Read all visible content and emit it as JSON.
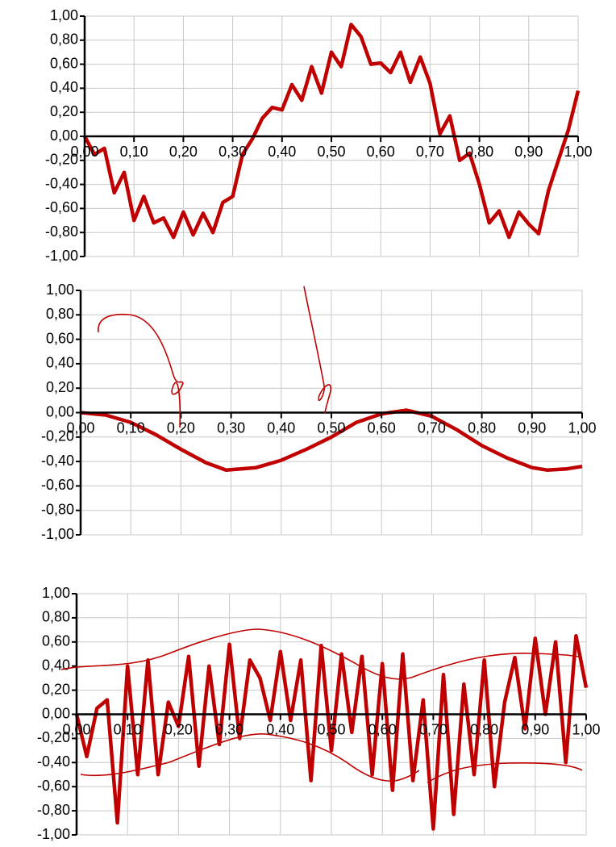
{
  "chart_data": [
    {
      "type": "line",
      "color": "#c00000",
      "grid": true,
      "xlim": [
        0,
        1
      ],
      "ylim": [
        -1,
        1
      ],
      "xticks": [
        {
          "value": 0,
          "label": "0,00"
        },
        {
          "value": 0.1,
          "label": "0,10"
        },
        {
          "value": 0.2,
          "label": "0,20"
        },
        {
          "value": 0.3,
          "label": "0,30"
        },
        {
          "value": 0.4,
          "label": "0,40"
        },
        {
          "value": 0.5,
          "label": "0,50"
        },
        {
          "value": 0.6,
          "label": "0,60"
        },
        {
          "value": 0.7,
          "label": "0,70"
        },
        {
          "value": 0.8,
          "label": "0,80"
        },
        {
          "value": 0.9,
          "label": "0,90"
        },
        {
          "value": 1,
          "label": "1,00"
        }
      ],
      "yticks": [
        {
          "value": -1,
          "label": "-1,00"
        },
        {
          "value": -0.8,
          "label": "-0,80"
        },
        {
          "value": -0.6,
          "label": "-0,60"
        },
        {
          "value": -0.4,
          "label": "-0,40"
        },
        {
          "value": -0.2,
          "label": "-0,20"
        },
        {
          "value": 0,
          "label": "0,00"
        },
        {
          "value": 0.2,
          "label": "0,20"
        },
        {
          "value": 0.4,
          "label": "0,40"
        },
        {
          "value": 0.6,
          "label": "0,60"
        },
        {
          "value": 0.8,
          "label": "0,80"
        },
        {
          "value": 1,
          "label": "1,00"
        }
      ],
      "x": [
        0,
        0.02,
        0.04,
        0.06,
        0.08,
        0.1,
        0.12,
        0.14,
        0.16,
        0.18,
        0.2,
        0.22,
        0.24,
        0.26,
        0.28,
        0.3,
        0.32,
        0.34,
        0.36,
        0.38,
        0.4,
        0.42,
        0.44,
        0.46,
        0.48,
        0.5,
        0.52,
        0.54,
        0.56,
        0.58,
        0.6,
        0.62,
        0.64,
        0.66,
        0.68,
        0.7,
        0.72,
        0.74,
        0.76,
        0.78,
        0.8,
        0.82,
        0.84,
        0.86,
        0.88,
        0.9,
        0.92,
        0.94,
        0.96,
        0.98,
        1
      ],
      "values": [
        0,
        -0.15,
        -0.1,
        -0.47,
        -0.3,
        -0.7,
        -0.5,
        -0.72,
        -0.68,
        -0.84,
        -0.63,
        -0.82,
        -0.64,
        -0.8,
        -0.55,
        -0.5,
        -0.15,
        -0.02,
        0.15,
        0.24,
        0.22,
        0.43,
        0.3,
        0.58,
        0.36,
        0.7,
        0.58,
        0.93,
        0.83,
        0.6,
        0.61,
        0.53,
        0.7,
        0.45,
        0.66,
        0.44,
        0.02,
        0.17,
        -0.2,
        -0.14,
        -0.4,
        -0.72,
        -0.62,
        -0.84,
        -0.63,
        -0.73,
        -0.81,
        -0.45,
        -0.2,
        0.05,
        0.38
      ]
    },
    {
      "type": "line",
      "color": "#c00000",
      "grid": true,
      "xlim": [
        0,
        1
      ],
      "ylim": [
        -1,
        1
      ],
      "xticks": [
        {
          "value": 0,
          "label": "0,00"
        },
        {
          "value": 0.1,
          "label": "0,10"
        },
        {
          "value": 0.2,
          "label": "0,20"
        },
        {
          "value": 0.3,
          "label": "0,30"
        },
        {
          "value": 0.4,
          "label": "0,40"
        },
        {
          "value": 0.5,
          "label": "0,50"
        },
        {
          "value": 0.6,
          "label": "0,60"
        },
        {
          "value": 0.7,
          "label": "0,70"
        },
        {
          "value": 0.8,
          "label": "0,80"
        },
        {
          "value": 0.9,
          "label": "0,90"
        },
        {
          "value": 1,
          "label": "1,00"
        }
      ],
      "yticks": [
        {
          "value": -1,
          "label": "-1,00"
        },
        {
          "value": -0.8,
          "label": "-0,80"
        },
        {
          "value": -0.6,
          "label": "-0,60"
        },
        {
          "value": -0.4,
          "label": "-0,40"
        },
        {
          "value": -0.2,
          "label": "-0,20"
        },
        {
          "value": 0,
          "label": "0,00"
        },
        {
          "value": 0.2,
          "label": "0,20"
        },
        {
          "value": 0.4,
          "label": "0,40"
        },
        {
          "value": 0.6,
          "label": "0,60"
        },
        {
          "value": 0.8,
          "label": "0,80"
        },
        {
          "value": 1,
          "label": "1,00"
        }
      ],
      "x": [
        0,
        0.05,
        0.1,
        0.15,
        0.2,
        0.25,
        0.29,
        0.35,
        0.4,
        0.45,
        0.5,
        0.55,
        0.6,
        0.65,
        0.7,
        0.75,
        0.8,
        0.85,
        0.9,
        0.93,
        0.97,
        1
      ],
      "values": [
        0,
        -0.02,
        -0.08,
        -0.18,
        -0.3,
        -0.41,
        -0.47,
        -0.45,
        -0.39,
        -0.3,
        -0.2,
        -0.08,
        -0.01,
        0.02,
        -0.03,
        -0.14,
        -0.27,
        -0.37,
        -0.45,
        -0.47,
        -0.46,
        -0.44
      ]
    },
    {
      "type": "line",
      "color": "#c00000",
      "grid": true,
      "xlim": [
        0,
        1
      ],
      "ylim": [
        -1,
        1
      ],
      "xticks": [
        {
          "value": 0,
          "label": "0,00"
        },
        {
          "value": 0.1,
          "label": "0,10"
        },
        {
          "value": 0.2,
          "label": "0,20"
        },
        {
          "value": 0.3,
          "label": "0,30"
        },
        {
          "value": 0.4,
          "label": "0,40"
        },
        {
          "value": 0.5,
          "label": "0,50"
        },
        {
          "value": 0.6,
          "label": "0,60"
        },
        {
          "value": 0.7,
          "label": "0,70"
        },
        {
          "value": 0.8,
          "label": "0,80"
        },
        {
          "value": 0.9,
          "label": "0,90"
        },
        {
          "value": 1,
          "label": "1,00"
        }
      ],
      "yticks": [
        {
          "value": -1,
          "label": "-1,00"
        },
        {
          "value": -0.8,
          "label": "-0,80"
        },
        {
          "value": -0.6,
          "label": "-0,60"
        },
        {
          "value": -0.4,
          "label": "-0,40"
        },
        {
          "value": -0.2,
          "label": "-0,20"
        },
        {
          "value": 0,
          "label": "0,00"
        },
        {
          "value": 0.2,
          "label": "0,20"
        },
        {
          "value": 0.4,
          "label": "0,40"
        },
        {
          "value": 0.6,
          "label": "0,60"
        },
        {
          "value": 0.8,
          "label": "0,80"
        },
        {
          "value": 1,
          "label": "1,00"
        }
      ],
      "x": [
        0,
        0.02,
        0.04,
        0.06,
        0.08,
        0.1,
        0.12,
        0.14,
        0.16,
        0.18,
        0.2,
        0.22,
        0.24,
        0.26,
        0.28,
        0.3,
        0.32,
        0.34,
        0.36,
        0.38,
        0.4,
        0.42,
        0.44,
        0.46,
        0.48,
        0.5,
        0.52,
        0.54,
        0.56,
        0.58,
        0.6,
        0.62,
        0.64,
        0.66,
        0.68,
        0.7,
        0.72,
        0.74,
        0.76,
        0.78,
        0.8,
        0.82,
        0.84,
        0.86,
        0.88,
        0.9,
        0.92,
        0.94,
        0.96,
        0.98,
        1
      ],
      "values": [
        0,
        -0.35,
        0.05,
        0.12,
        -0.9,
        0.4,
        -0.5,
        0.45,
        -0.5,
        0.1,
        -0.1,
        0.48,
        -0.43,
        0.4,
        -0.25,
        0.58,
        -0.2,
        0.45,
        0.3,
        -0.05,
        0.52,
        -0.05,
        0.45,
        -0.55,
        0.57,
        -0.3,
        0.5,
        -0.15,
        0.48,
        -0.5,
        0.42,
        -0.63,
        0.5,
        -0.55,
        0.12,
        -0.95,
        0.33,
        -0.83,
        0.25,
        -0.5,
        0.45,
        -0.6,
        0.1,
        0.47,
        -0.12,
        0.63,
        0,
        0.6,
        -0.4,
        0.65,
        0.22
      ]
    }
  ]
}
